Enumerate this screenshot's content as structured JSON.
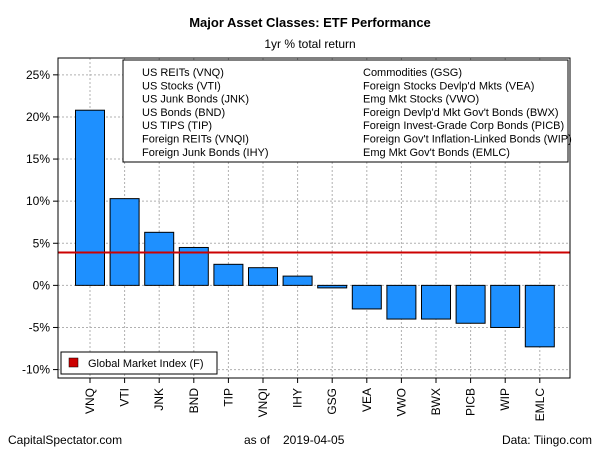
{
  "chart_data": {
    "type": "bar",
    "title": "Major Asset Classes: ETF Performance",
    "subtitle": "1yr % total return",
    "categories": [
      "VNQ",
      "VTI",
      "JNK",
      "BND",
      "TIP",
      "VNQI",
      "IHY",
      "GSG",
      "VEA",
      "VWO",
      "BWX",
      "PICB",
      "WIP",
      "EMLC"
    ],
    "values": [
      20.8,
      10.3,
      6.3,
      4.5,
      2.5,
      2.1,
      1.1,
      -0.3,
      -2.8,
      -4.0,
      -4.0,
      -4.5,
      -5.0,
      -7.3
    ],
    "reference_line": {
      "label": "Global Market Index (F)",
      "value": 3.9,
      "color": "#cc0000"
    },
    "ylim": [
      -11,
      27
    ],
    "yticks": [
      -10,
      -5,
      0,
      5,
      10,
      15,
      20,
      25
    ],
    "ytick_labels": [
      "-10%",
      "-5%",
      "0%",
      "5%",
      "10%",
      "15%",
      "20%",
      "25%"
    ],
    "grid": true,
    "bar_color": "#1e90ff",
    "legend_placement": "top",
    "fund_legend_left": [
      "US REITs (VNQ)",
      "US Stocks (VTI)",
      "US Junk Bonds (JNK)",
      "US Bonds (BND)",
      "US TIPS (TIP)",
      "Foreign REITs (VNQI)",
      "Foreign Junk Bonds (IHY)"
    ],
    "fund_legend_right": [
      "Commodities (GSG)",
      "Foreign Stocks Devlp'd Mkts (VEA)",
      "Emg Mkt Stocks (VWO)",
      "Foreign Devlp'd Mkt Gov't Bonds (BWX)",
      "Foreign Invest-Grade Corp Bonds (PICB)",
      "Foreign Gov't Inflation-Linked Bonds (WIP)",
      "Emg Mkt Gov't Bonds (EMLC)"
    ]
  },
  "footer": {
    "source_left": "CapitalSpectator.com",
    "as_of_label": "as of",
    "as_of_date": "2019-04-05",
    "source_right": "Data: Tiingo.com"
  }
}
